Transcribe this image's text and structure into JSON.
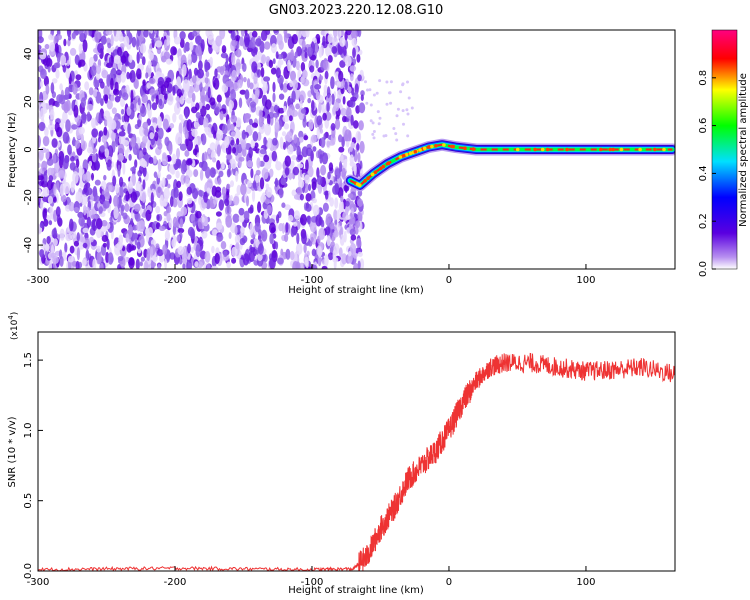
{
  "page_title": "GN03.2023.220.12.08.G10",
  "chart_data": [
    {
      "type": "heatmap",
      "xlabel": "Height of straight line (km)",
      "ylabel": "Frequency (Hz)",
      "xlim": [
        -300,
        165
      ],
      "ylim": [
        -50,
        50
      ],
      "x_ticks": [
        -300,
        -200,
        -100,
        0,
        100
      ],
      "x_tick_labels": [
        "-300",
        "-200",
        "-100",
        "0",
        "100"
      ],
      "y_ticks": [
        40,
        20,
        0,
        -20,
        -40
      ],
      "y_tick_labels": [
        "40",
        "20",
        "0",
        "-20",
        "-40"
      ],
      "noise_region_x": [
        -300,
        -63
      ],
      "signal_track": {
        "x": [
          -72,
          -65,
          -55,
          -45,
          -35,
          -25,
          -15,
          -5,
          5,
          20,
          50,
          100,
          140,
          163
        ],
        "y": [
          -13,
          -15,
          -10,
          -6,
          -3,
          -1,
          1,
          2,
          1,
          0,
          0,
          0,
          0,
          0
        ]
      },
      "colorbar": {
        "label": "Normalized spectral amplitude",
        "range": [
          0,
          1
        ],
        "ticks": [
          0.0,
          0.2,
          0.4,
          0.6,
          0.8
        ],
        "tick_labels": [
          "0.0",
          "0.2",
          "0.4",
          "0.6",
          "0.8"
        ],
        "colors": [
          "#ffffff",
          "#8a2be2",
          "#0000ff",
          "#00ffff",
          "#00ff00",
          "#ffff00",
          "#ff0000",
          "#ff0080"
        ]
      },
      "grid": false
    },
    {
      "type": "line",
      "xlabel": "Height of straight line (km)",
      "ylabel": "SNR (10 * v/v)",
      "y_multiplier_label": "(x10",
      "y_multiplier_exp": "4",
      "y_multiplier_close": ")",
      "xlim": [
        -300,
        165
      ],
      "ylim": [
        0,
        1.7
      ],
      "x_ticks": [
        -300,
        -200,
        -100,
        0,
        100
      ],
      "x_tick_labels": [
        "-300",
        "-200",
        "-100",
        "0",
        "100"
      ],
      "y_ticks": [
        0.0,
        0.5,
        1.0,
        1.5
      ],
      "y_tick_labels": [
        "0.0",
        "0.5",
        "1.0",
        "1.5"
      ],
      "line_color": "#ee3333",
      "series": [
        {
          "x": [
            -300,
            -250,
            -200,
            -150,
            -100,
            -70,
            -60,
            -50,
            -40,
            -30,
            -20,
            -10,
            0,
            10,
            20,
            30,
            40,
            60,
            80,
            100,
            120,
            140,
            165
          ],
          "y": [
            0.01,
            0.015,
            0.02,
            0.015,
            0.01,
            0.015,
            0.1,
            0.3,
            0.45,
            0.65,
            0.75,
            0.85,
            1.0,
            1.2,
            1.35,
            1.45,
            1.48,
            1.48,
            1.45,
            1.42,
            1.43,
            1.45,
            1.4
          ]
        }
      ],
      "grid": false
    }
  ]
}
